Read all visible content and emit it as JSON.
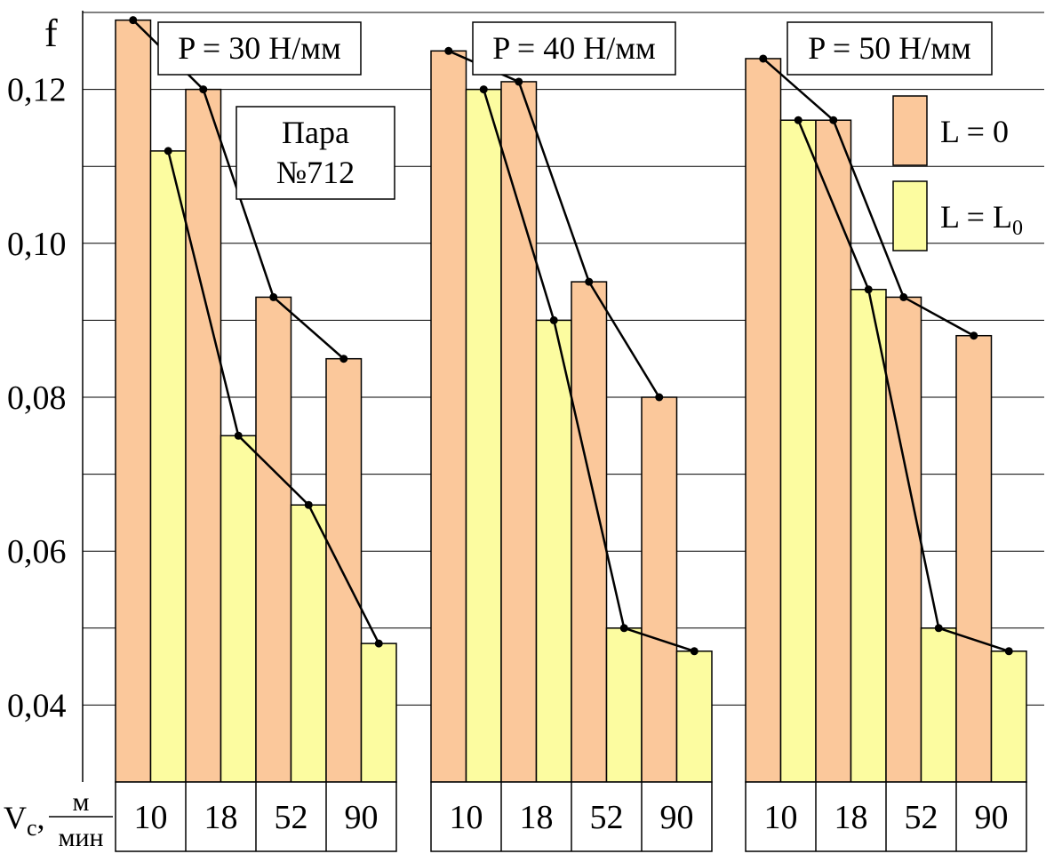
{
  "chart_data": {
    "type": "bar",
    "ylabel": "f",
    "ylim": [
      0.03,
      0.13
    ],
    "yticks": [
      "0,04",
      "0,06",
      "0,08",
      "0,10",
      "0,12"
    ],
    "xlabel": {
      "symbol": "V",
      "subscript": "c",
      "unit_numerator": "м",
      "unit_denominator": "мин"
    },
    "categories": [
      "10",
      "18",
      "52",
      "90"
    ],
    "colors": {
      "L0": "#fbc89b",
      "LL0": "#fcfca0"
    },
    "legend": {
      "placement": "top-right",
      "items": [
        {
          "text": "L = 0",
          "series": "L0"
        },
        {
          "text": "L = L",
          "sub": "0",
          "series": "LL0"
        }
      ]
    },
    "annotation": {
      "line1": "Пара",
      "line2": "№712"
    },
    "panels": [
      {
        "title": "P = 30 Н/мм",
        "series": [
          {
            "key": "L0",
            "values": [
              0.129,
              0.12,
              0.093,
              0.085
            ]
          },
          {
            "key": "LL0",
            "values": [
              0.112,
              0.075,
              0.066,
              0.048
            ]
          }
        ]
      },
      {
        "title": "P = 40 Н/мм",
        "series": [
          {
            "key": "L0",
            "values": [
              0.125,
              0.121,
              0.095,
              0.08
            ]
          },
          {
            "key": "LL0",
            "values": [
              0.12,
              0.09,
              0.05,
              0.047
            ]
          }
        ]
      },
      {
        "title": "P = 50 Н/мм",
        "series": [
          {
            "key": "L0",
            "values": [
              0.124,
              0.116,
              0.093,
              0.088
            ]
          },
          {
            "key": "LL0",
            "values": [
              0.116,
              0.094,
              0.05,
              0.047
            ]
          }
        ]
      }
    ]
  }
}
